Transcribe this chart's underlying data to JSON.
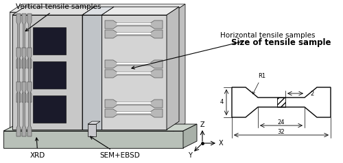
{
  "bg_color": "#ffffff",
  "label_vertical": "Vertical tensile samples",
  "label_horizontal": "Horizontal tensile samples",
  "label_size_title": "Size of tensile sample",
  "label_xrd": "XRD",
  "label_sem": "SEM+EBSD",
  "dim_r1": "R1",
  "dim_2": "2",
  "dim_4": "4",
  "dim_24": "24",
  "dim_32": "32",
  "panel_front_color": "#d0d0d0",
  "panel_side_color": "#b8b8b8",
  "panel_top_color": "#e8e8e8",
  "left_panel_color": "#c8c8c8",
  "right_panel_color": "#d4d4d4",
  "base_front_color": "#b8c0b8",
  "base_top_color": "#ccd4cc",
  "base_side_color": "#a8b0a8",
  "black_sq_color": "#1a1a2a",
  "bar_color": "#aaaaaa",
  "bar_edge": "#555555",
  "center_bar_color": "#c0c0c8",
  "fontsize_ann": 7.5,
  "fontsize_dim": 6.0,
  "fontsize_axis": 7.0
}
